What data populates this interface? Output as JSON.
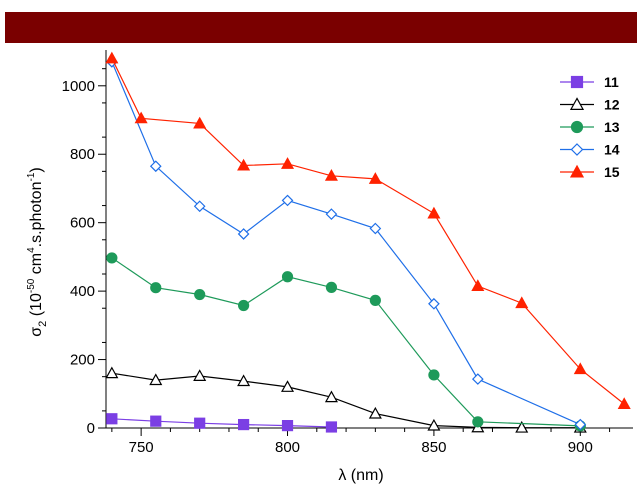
{
  "banner": {
    "color": "#7a0000"
  },
  "chart_data": {
    "type": "line",
    "xlabel": {
      "symbol": "λ",
      "text": " (nm)"
    },
    "ylabel": {
      "sym": "σ",
      "sub": "2",
      "paren_open": " (10",
      "exp1": "-50",
      "unit1": " cm",
      "exp2": "4",
      "unit2": ".s.photon",
      "exp3": "-1",
      "paren_close": ")"
    },
    "xlim": [
      738,
      918
    ],
    "ylim": [
      0,
      1090
    ],
    "x_ticks": [
      750,
      800,
      850,
      900
    ],
    "y_ticks": [
      0,
      200,
      400,
      600,
      800,
      1000
    ],
    "grid": false,
    "legend_position": "top-right",
    "series": [
      {
        "name": "11",
        "color": "#7b3fe4",
        "marker": "square-filled",
        "x": [
          740,
          755,
          770,
          785,
          800,
          815
        ],
        "y": [
          27,
          20,
          14,
          10,
          7,
          3
        ]
      },
      {
        "name": "12",
        "color": "#000000",
        "marker": "triangle-open",
        "x": [
          740,
          755,
          770,
          785,
          800,
          815,
          830,
          850,
          865,
          880,
          900
        ],
        "y": [
          160,
          140,
          152,
          137,
          120,
          90,
          42,
          7,
          2,
          1,
          1
        ]
      },
      {
        "name": "13",
        "color": "#1e9a5a",
        "marker": "circle-filled",
        "x": [
          740,
          755,
          770,
          785,
          800,
          815,
          830,
          850,
          865,
          900
        ],
        "y": [
          497,
          410,
          390,
          358,
          442,
          411,
          373,
          155,
          18,
          6
        ]
      },
      {
        "name": "14",
        "color": "#1f6fe8",
        "marker": "diamond-open",
        "x": [
          740,
          755,
          770,
          785,
          800,
          815,
          830,
          850,
          865,
          900
        ],
        "y": [
          1070,
          765,
          648,
          567,
          665,
          625,
          583,
          363,
          143,
          10
        ]
      },
      {
        "name": "15",
        "color": "#ff2200",
        "marker": "triangle-filled",
        "x": [
          740,
          750,
          770,
          785,
          800,
          815,
          830,
          850,
          865,
          880,
          900,
          915
        ],
        "y": [
          1080,
          905,
          890,
          767,
          772,
          737,
          728,
          627,
          415,
          365,
          172,
          70
        ]
      }
    ]
  }
}
